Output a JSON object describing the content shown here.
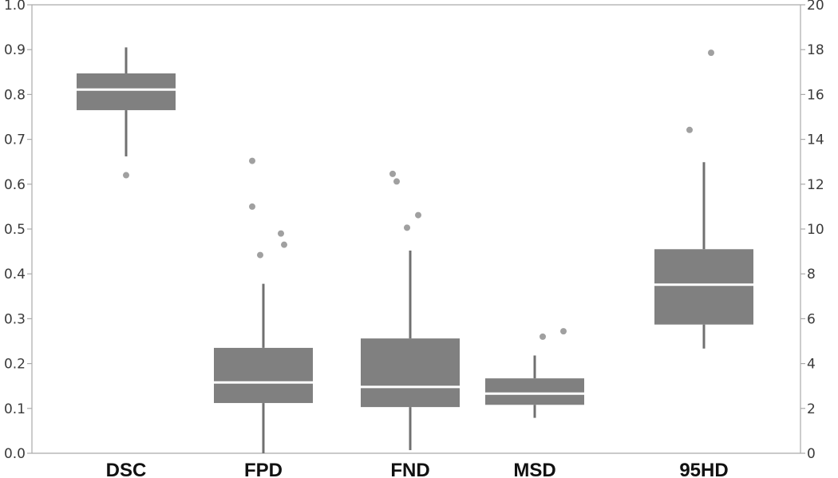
{
  "chart_data": {
    "type": "box",
    "categories": [
      "DSC",
      "FPD",
      "FND",
      "MSD",
      "95HD"
    ],
    "left_axis": {
      "ylim": [
        0,
        1.0
      ],
      "ticks": [
        "0.0",
        "0.1",
        "0.2",
        "0.3",
        "0.4",
        "0.5",
        "0.6",
        "0.7",
        "0.8",
        "0.9",
        "1.0"
      ]
    },
    "right_axis": {
      "ylim": [
        0,
        20
      ],
      "ticks": [
        "0",
        "2",
        "4",
        "6",
        "8",
        "10",
        "12",
        "14",
        "16",
        "18",
        "20"
      ]
    },
    "grid": false,
    "colors": {
      "box": "#808080",
      "median": "#ffffff",
      "whisker": "#707070",
      "outlier": "#a0a0a0",
      "axis": "#aaaaaa"
    },
    "boxes": [
      {
        "category": "DSC",
        "axis": "left",
        "whisker_low": 0.662,
        "q1": 0.765,
        "median": 0.811,
        "q3": 0.847,
        "whisker_high": 0.905,
        "outliers": [
          0.62
        ]
      },
      {
        "category": "FPD",
        "axis": "left",
        "whisker_low": 0.0,
        "q1": 0.112,
        "median": 0.158,
        "q3": 0.235,
        "whisker_high": 0.378,
        "outliers": [
          0.652,
          0.55,
          0.49,
          0.465,
          0.442
        ]
      },
      {
        "category": "FND",
        "axis": "left",
        "whisker_low": 0.007,
        "q1": 0.103,
        "median": 0.148,
        "q3": 0.256,
        "whisker_high": 0.452,
        "outliers": [
          0.623,
          0.606,
          0.531,
          0.503
        ]
      },
      {
        "category": "MSD",
        "axis": "left",
        "whisker_low": 0.079,
        "q1": 0.108,
        "median": 0.133,
        "q3": 0.167,
        "whisker_high": 0.218,
        "outliers": [
          0.26,
          0.272
        ]
      },
      {
        "category": "95HD",
        "axis": "right",
        "whisker_low": 4.67,
        "q1": 5.74,
        "median": 7.52,
        "q3": 9.1,
        "whisker_high": 12.98,
        "outliers": [
          14.42,
          17.86
        ]
      }
    ]
  }
}
